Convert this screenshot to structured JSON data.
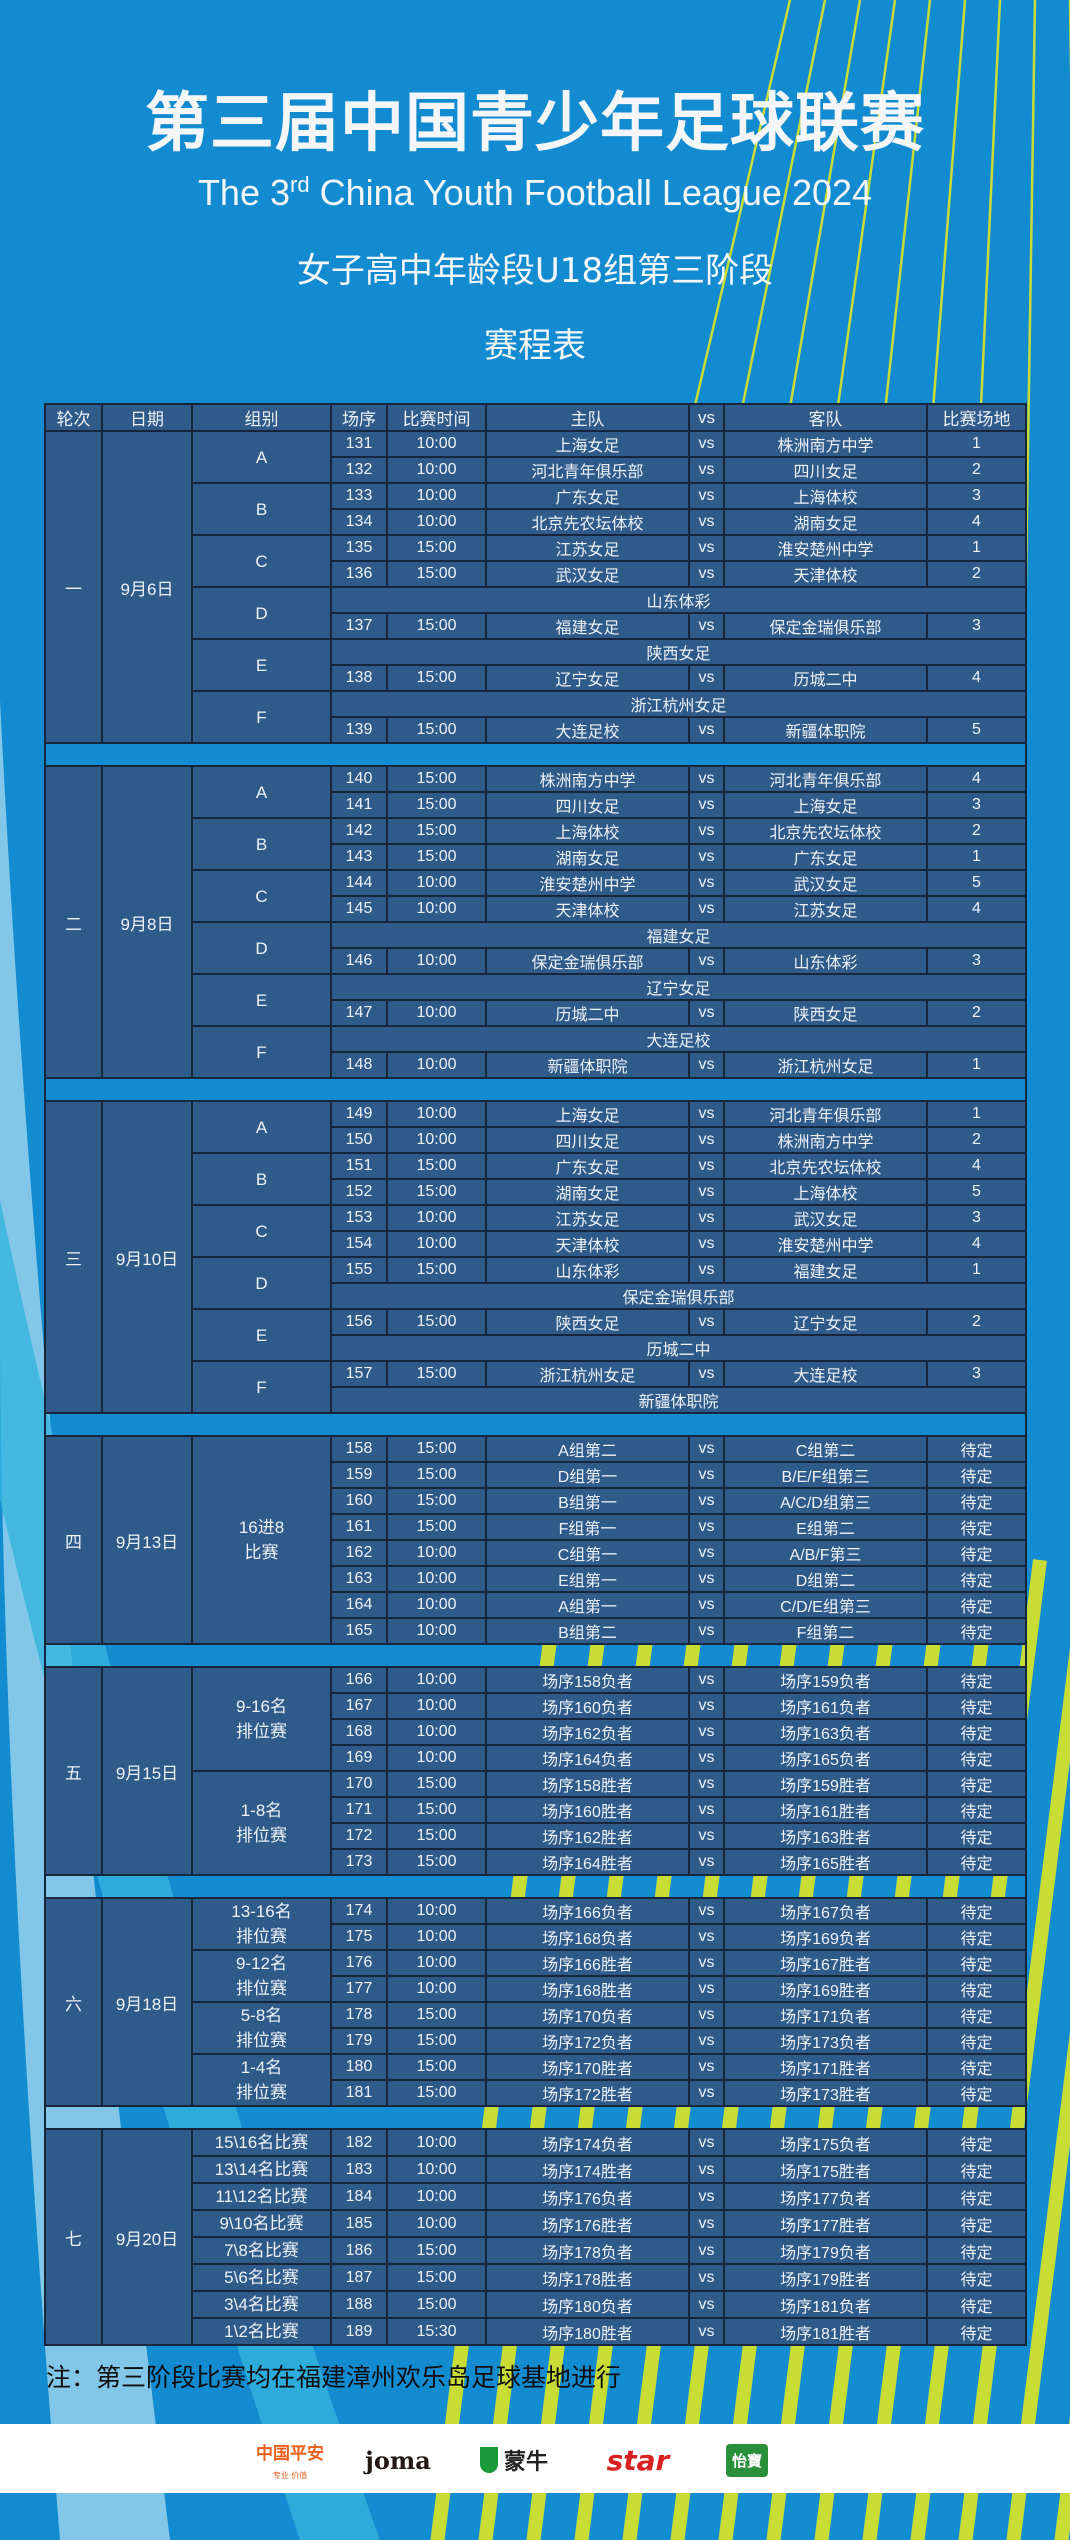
{
  "header": {
    "title": "第三届中国青少年足球联赛",
    "english_prefix": "The 3",
    "english_sup": "rd",
    "english_suffix": " China Youth Football League 2024",
    "subtitle": "女子高中年龄段U18组第三阶段",
    "schedule_title": "赛程表"
  },
  "colors": {
    "background": "#128bd0",
    "cell": "#2f5b8b",
    "border": "#17263a",
    "stripe": "#c9dc36"
  },
  "table": {
    "columns": [
      "轮次",
      "日期",
      "组别",
      "场序",
      "比赛时间",
      "主队",
      "vs",
      "客队",
      "比赛场地"
    ],
    "rounds": [
      {
        "round": "一",
        "date": "9月6日",
        "groups": [
          {
            "label": "A",
            "rows": [
              {
                "no": "131",
                "time": "10:00",
                "home": "上海女足",
                "vs": "vs",
                "away": "株洲南方中学",
                "venue": "1"
              },
              {
                "no": "132",
                "time": "10:00",
                "home": "河北青年俱乐部",
                "vs": "vs",
                "away": "四川女足",
                "venue": "2"
              }
            ]
          },
          {
            "label": "B",
            "rows": [
              {
                "no": "133",
                "time": "10:00",
                "home": "广东女足",
                "vs": "vs",
                "away": "上海体校",
                "venue": "3"
              },
              {
                "no": "134",
                "time": "10:00",
                "home": "北京先农坛体校",
                "vs": "vs",
                "away": "湖南女足",
                "venue": "4"
              }
            ]
          },
          {
            "label": "C",
            "rows": [
              {
                "no": "135",
                "time": "15:00",
                "home": "江苏女足",
                "vs": "vs",
                "away": "淮安楚州中学",
                "venue": "1"
              },
              {
                "no": "136",
                "time": "15:00",
                "home": "武汉女足",
                "vs": "vs",
                "away": "天津体校",
                "venue": "2"
              }
            ]
          },
          {
            "label": "D",
            "rows": [
              {
                "team": "山东体彩"
              },
              {
                "no": "137",
                "time": "15:00",
                "home": "福建女足",
                "vs": "vs",
                "away": "保定金瑞俱乐部",
                "venue": "3"
              }
            ]
          },
          {
            "label": "E",
            "rows": [
              {
                "team": "陕西女足"
              },
              {
                "no": "138",
                "time": "15:00",
                "home": "辽宁女足",
                "vs": "vs",
                "away": "历城二中",
                "venue": "4"
              }
            ]
          },
          {
            "label": "F",
            "rows": [
              {
                "team": "浙江杭州女足"
              },
              {
                "no": "139",
                "time": "15:00",
                "home": "大连足校",
                "vs": "vs",
                "away": "新疆体职院",
                "venue": "5"
              }
            ]
          }
        ]
      },
      {
        "round": "二",
        "date": "9月8日",
        "groups": [
          {
            "label": "A",
            "rows": [
              {
                "no": "140",
                "time": "15:00",
                "home": "株洲南方中学",
                "vs": "vs",
                "away": "河北青年俱乐部",
                "venue": "4"
              },
              {
                "no": "141",
                "time": "15:00",
                "home": "四川女足",
                "vs": "vs",
                "away": "上海女足",
                "venue": "3"
              }
            ]
          },
          {
            "label": "B",
            "rows": [
              {
                "no": "142",
                "time": "15:00",
                "home": "上海体校",
                "vs": "vs",
                "away": "北京先农坛体校",
                "venue": "2"
              },
              {
                "no": "143",
                "time": "15:00",
                "home": "湖南女足",
                "vs": "vs",
                "away": "广东女足",
                "venue": "1"
              }
            ]
          },
          {
            "label": "C",
            "rows": [
              {
                "no": "144",
                "time": "10:00",
                "home": "淮安楚州中学",
                "vs": "vs",
                "away": "武汉女足",
                "venue": "5"
              },
              {
                "no": "145",
                "time": "10:00",
                "home": "天津体校",
                "vs": "vs",
                "away": "江苏女足",
                "venue": "4"
              }
            ]
          },
          {
            "label": "D",
            "rows": [
              {
                "team": "福建女足"
              },
              {
                "no": "146",
                "time": "10:00",
                "home": "保定金瑞俱乐部",
                "vs": "vs",
                "away": "山东体彩",
                "venue": "3"
              }
            ]
          },
          {
            "label": "E",
            "rows": [
              {
                "team": "辽宁女足"
              },
              {
                "no": "147",
                "time": "10:00",
                "home": "历城二中",
                "vs": "vs",
                "away": "陕西女足",
                "venue": "2"
              }
            ]
          },
          {
            "label": "F",
            "rows": [
              {
                "team": "大连足校"
              },
              {
                "no": "148",
                "time": "10:00",
                "home": "新疆体职院",
                "vs": "vs",
                "away": "浙江杭州女足",
                "venue": "1"
              }
            ]
          }
        ]
      },
      {
        "round": "三",
        "date": "9月10日",
        "groups": [
          {
            "label": "A",
            "rows": [
              {
                "no": "149",
                "time": "10:00",
                "home": "上海女足",
                "vs": "vs",
                "away": "河北青年俱乐部",
                "venue": "1"
              },
              {
                "no": "150",
                "time": "10:00",
                "home": "四川女足",
                "vs": "vs",
                "away": "株洲南方中学",
                "venue": "2"
              }
            ]
          },
          {
            "label": "B",
            "rows": [
              {
                "no": "151",
                "time": "15:00",
                "home": "广东女足",
                "vs": "vs",
                "away": "北京先农坛体校",
                "venue": "4"
              },
              {
                "no": "152",
                "time": "15:00",
                "home": "湖南女足",
                "vs": "vs",
                "away": "上海体校",
                "venue": "5"
              }
            ]
          },
          {
            "label": "C",
            "rows": [
              {
                "no": "153",
                "time": "10:00",
                "home": "江苏女足",
                "vs": "vs",
                "away": "武汉女足",
                "venue": "3"
              },
              {
                "no": "154",
                "time": "10:00",
                "home": "天津体校",
                "vs": "vs",
                "away": "淮安楚州中学",
                "venue": "4"
              }
            ]
          },
          {
            "label": "D",
            "rows": [
              {
                "no": "155",
                "time": "15:00",
                "home": "山东体彩",
                "vs": "vs",
                "away": "福建女足",
                "venue": "1"
              },
              {
                "team": "保定金瑞俱乐部"
              }
            ]
          },
          {
            "label": "E",
            "rows": [
              {
                "no": "156",
                "time": "15:00",
                "home": "陕西女足",
                "vs": "vs",
                "away": "辽宁女足",
                "venue": "2"
              },
              {
                "team": "历城二中"
              }
            ]
          },
          {
            "label": "F",
            "rows": [
              {
                "no": "157",
                "time": "15:00",
                "home": "浙江杭州女足",
                "vs": "vs",
                "away": "大连足校",
                "venue": "3"
              },
              {
                "team": "新疆体职院"
              }
            ]
          }
        ]
      },
      {
        "round": "四",
        "date": "9月13日",
        "groups": [
          {
            "label": "16进8\n比赛",
            "rows": [
              {
                "no": "158",
                "time": "15:00",
                "home": "A组第二",
                "vs": "vs",
                "away": "C组第二",
                "venue": "待定"
              },
              {
                "no": "159",
                "time": "15:00",
                "home": "D组第一",
                "vs": "vs",
                "away": "B/E/F组第三",
                "venue": "待定"
              },
              {
                "no": "160",
                "time": "15:00",
                "home": "B组第一",
                "vs": "vs",
                "away": "A/C/D组第三",
                "venue": "待定"
              },
              {
                "no": "161",
                "time": "15:00",
                "home": "F组第一",
                "vs": "vs",
                "away": "E组第二",
                "venue": "待定"
              },
              {
                "no": "162",
                "time": "10:00",
                "home": "C组第一",
                "vs": "vs",
                "away": "A/B/F第三",
                "venue": "待定"
              },
              {
                "no": "163",
                "time": "10:00",
                "home": "E组第一",
                "vs": "vs",
                "away": "D组第二",
                "venue": "待定"
              },
              {
                "no": "164",
                "time": "10:00",
                "home": "A组第一",
                "vs": "vs",
                "away": "C/D/E组第三",
                "venue": "待定"
              },
              {
                "no": "165",
                "time": "10:00",
                "home": "B组第二",
                "vs": "vs",
                "away": "F组第二",
                "venue": "待定"
              }
            ]
          }
        ]
      },
      {
        "round": "五",
        "date": "9月15日",
        "groups": [
          {
            "label": "9-16名\n排位赛",
            "rows": [
              {
                "no": "166",
                "time": "10:00",
                "home": "场序158负者",
                "vs": "vs",
                "away": "场序159负者",
                "venue": "待定"
              },
              {
                "no": "167",
                "time": "10:00",
                "home": "场序160负者",
                "vs": "vs",
                "away": "场序161负者",
                "venue": "待定"
              },
              {
                "no": "168",
                "time": "10:00",
                "home": "场序162负者",
                "vs": "vs",
                "away": "场序163负者",
                "venue": "待定"
              },
              {
                "no": "169",
                "time": "10:00",
                "home": "场序164负者",
                "vs": "vs",
                "away": "场序165负者",
                "venue": "待定"
              }
            ]
          },
          {
            "label": "1-8名\n排位赛",
            "rows": [
              {
                "no": "170",
                "time": "15:00",
                "home": "场序158胜者",
                "vs": "vs",
                "away": "场序159胜者",
                "venue": "待定"
              },
              {
                "no": "171",
                "time": "15:00",
                "home": "场序160胜者",
                "vs": "vs",
                "away": "场序161胜者",
                "venue": "待定"
              },
              {
                "no": "172",
                "time": "15:00",
                "home": "场序162胜者",
                "vs": "vs",
                "away": "场序163胜者",
                "venue": "待定"
              },
              {
                "no": "173",
                "time": "15:00",
                "home": "场序164胜者",
                "vs": "vs",
                "away": "场序165胜者",
                "venue": "待定"
              }
            ]
          }
        ]
      },
      {
        "round": "六",
        "date": "9月18日",
        "groups": [
          {
            "label": "13-16名\n排位赛",
            "rows": [
              {
                "no": "174",
                "time": "10:00",
                "home": "场序166负者",
                "vs": "vs",
                "away": "场序167负者",
                "venue": "待定"
              },
              {
                "no": "175",
                "time": "10:00",
                "home": "场序168负者",
                "vs": "vs",
                "away": "场序169负者",
                "venue": "待定"
              }
            ]
          },
          {
            "label": "9-12名\n排位赛",
            "rows": [
              {
                "no": "176",
                "time": "10:00",
                "home": "场序166胜者",
                "vs": "vs",
                "away": "场序167胜者",
                "venue": "待定"
              },
              {
                "no": "177",
                "time": "10:00",
                "home": "场序168胜者",
                "vs": "vs",
                "away": "场序169胜者",
                "venue": "待定"
              }
            ]
          },
          {
            "label": "5-8名\n排位赛",
            "rows": [
              {
                "no": "178",
                "time": "15:00",
                "home": "场序170负者",
                "vs": "vs",
                "away": "场序171负者",
                "venue": "待定"
              },
              {
                "no": "179",
                "time": "15:00",
                "home": "场序172负者",
                "vs": "vs",
                "away": "场序173负者",
                "venue": "待定"
              }
            ]
          },
          {
            "label": "1-4名\n排位赛",
            "rows": [
              {
                "no": "180",
                "time": "15:00",
                "home": "场序170胜者",
                "vs": "vs",
                "away": "场序171胜者",
                "venue": "待定"
              },
              {
                "no": "181",
                "time": "15:00",
                "home": "场序172胜者",
                "vs": "vs",
                "away": "场序173胜者",
                "venue": "待定"
              }
            ]
          }
        ]
      },
      {
        "round": "七",
        "date": "9月20日",
        "groups": [
          {
            "label": "15\\16名比赛",
            "rows": [
              {
                "no": "182",
                "time": "10:00",
                "home": "场序174负者",
                "vs": "vs",
                "away": "场序175负者",
                "venue": "待定"
              }
            ]
          },
          {
            "label": "13\\14名比赛",
            "rows": [
              {
                "no": "183",
                "time": "10:00",
                "home": "场序174胜者",
                "vs": "vs",
                "away": "场序175胜者",
                "venue": "待定"
              }
            ]
          },
          {
            "label": "11\\12名比赛",
            "rows": [
              {
                "no": "184",
                "time": "10:00",
                "home": "场序176负者",
                "vs": "vs",
                "away": "场序177负者",
                "venue": "待定"
              }
            ]
          },
          {
            "label": "9\\10名比赛",
            "rows": [
              {
                "no": "185",
                "time": "10:00",
                "home": "场序176胜者",
                "vs": "vs",
                "away": "场序177胜者",
                "venue": "待定"
              }
            ]
          },
          {
            "label": "7\\8名比赛",
            "rows": [
              {
                "no": "186",
                "time": "15:00",
                "home": "场序178负者",
                "vs": "vs",
                "away": "场序179负者",
                "venue": "待定"
              }
            ]
          },
          {
            "label": "5\\6名比赛",
            "rows": [
              {
                "no": "187",
                "time": "15:00",
                "home": "场序178胜者",
                "vs": "vs",
                "away": "场序179胜者",
                "venue": "待定"
              }
            ]
          },
          {
            "label": "3\\4名比赛",
            "rows": [
              {
                "no": "188",
                "time": "15:00",
                "home": "场序180负者",
                "vs": "vs",
                "away": "场序181负者",
                "venue": "待定"
              }
            ]
          },
          {
            "label": "1\\2名比赛",
            "rows": [
              {
                "no": "189",
                "time": "15:30",
                "home": "场序180胜者",
                "vs": "vs",
                "away": "场序181胜者",
                "venue": "待定"
              }
            ]
          }
        ]
      }
    ]
  },
  "note": "注：第三阶段比赛均在福建漳州欢乐岛足球基地进行",
  "sponsors": [
    {
      "name": "中国平安",
      "tagline": "专业·价值",
      "color": "#e8601c"
    },
    {
      "name": "joma",
      "color": "#231815"
    },
    {
      "name": "蒙牛",
      "color": "#1b9a3a"
    },
    {
      "name": "star",
      "color": "#d7201f"
    },
    {
      "name": "怡寶",
      "color": "#2a8f3a"
    }
  ]
}
